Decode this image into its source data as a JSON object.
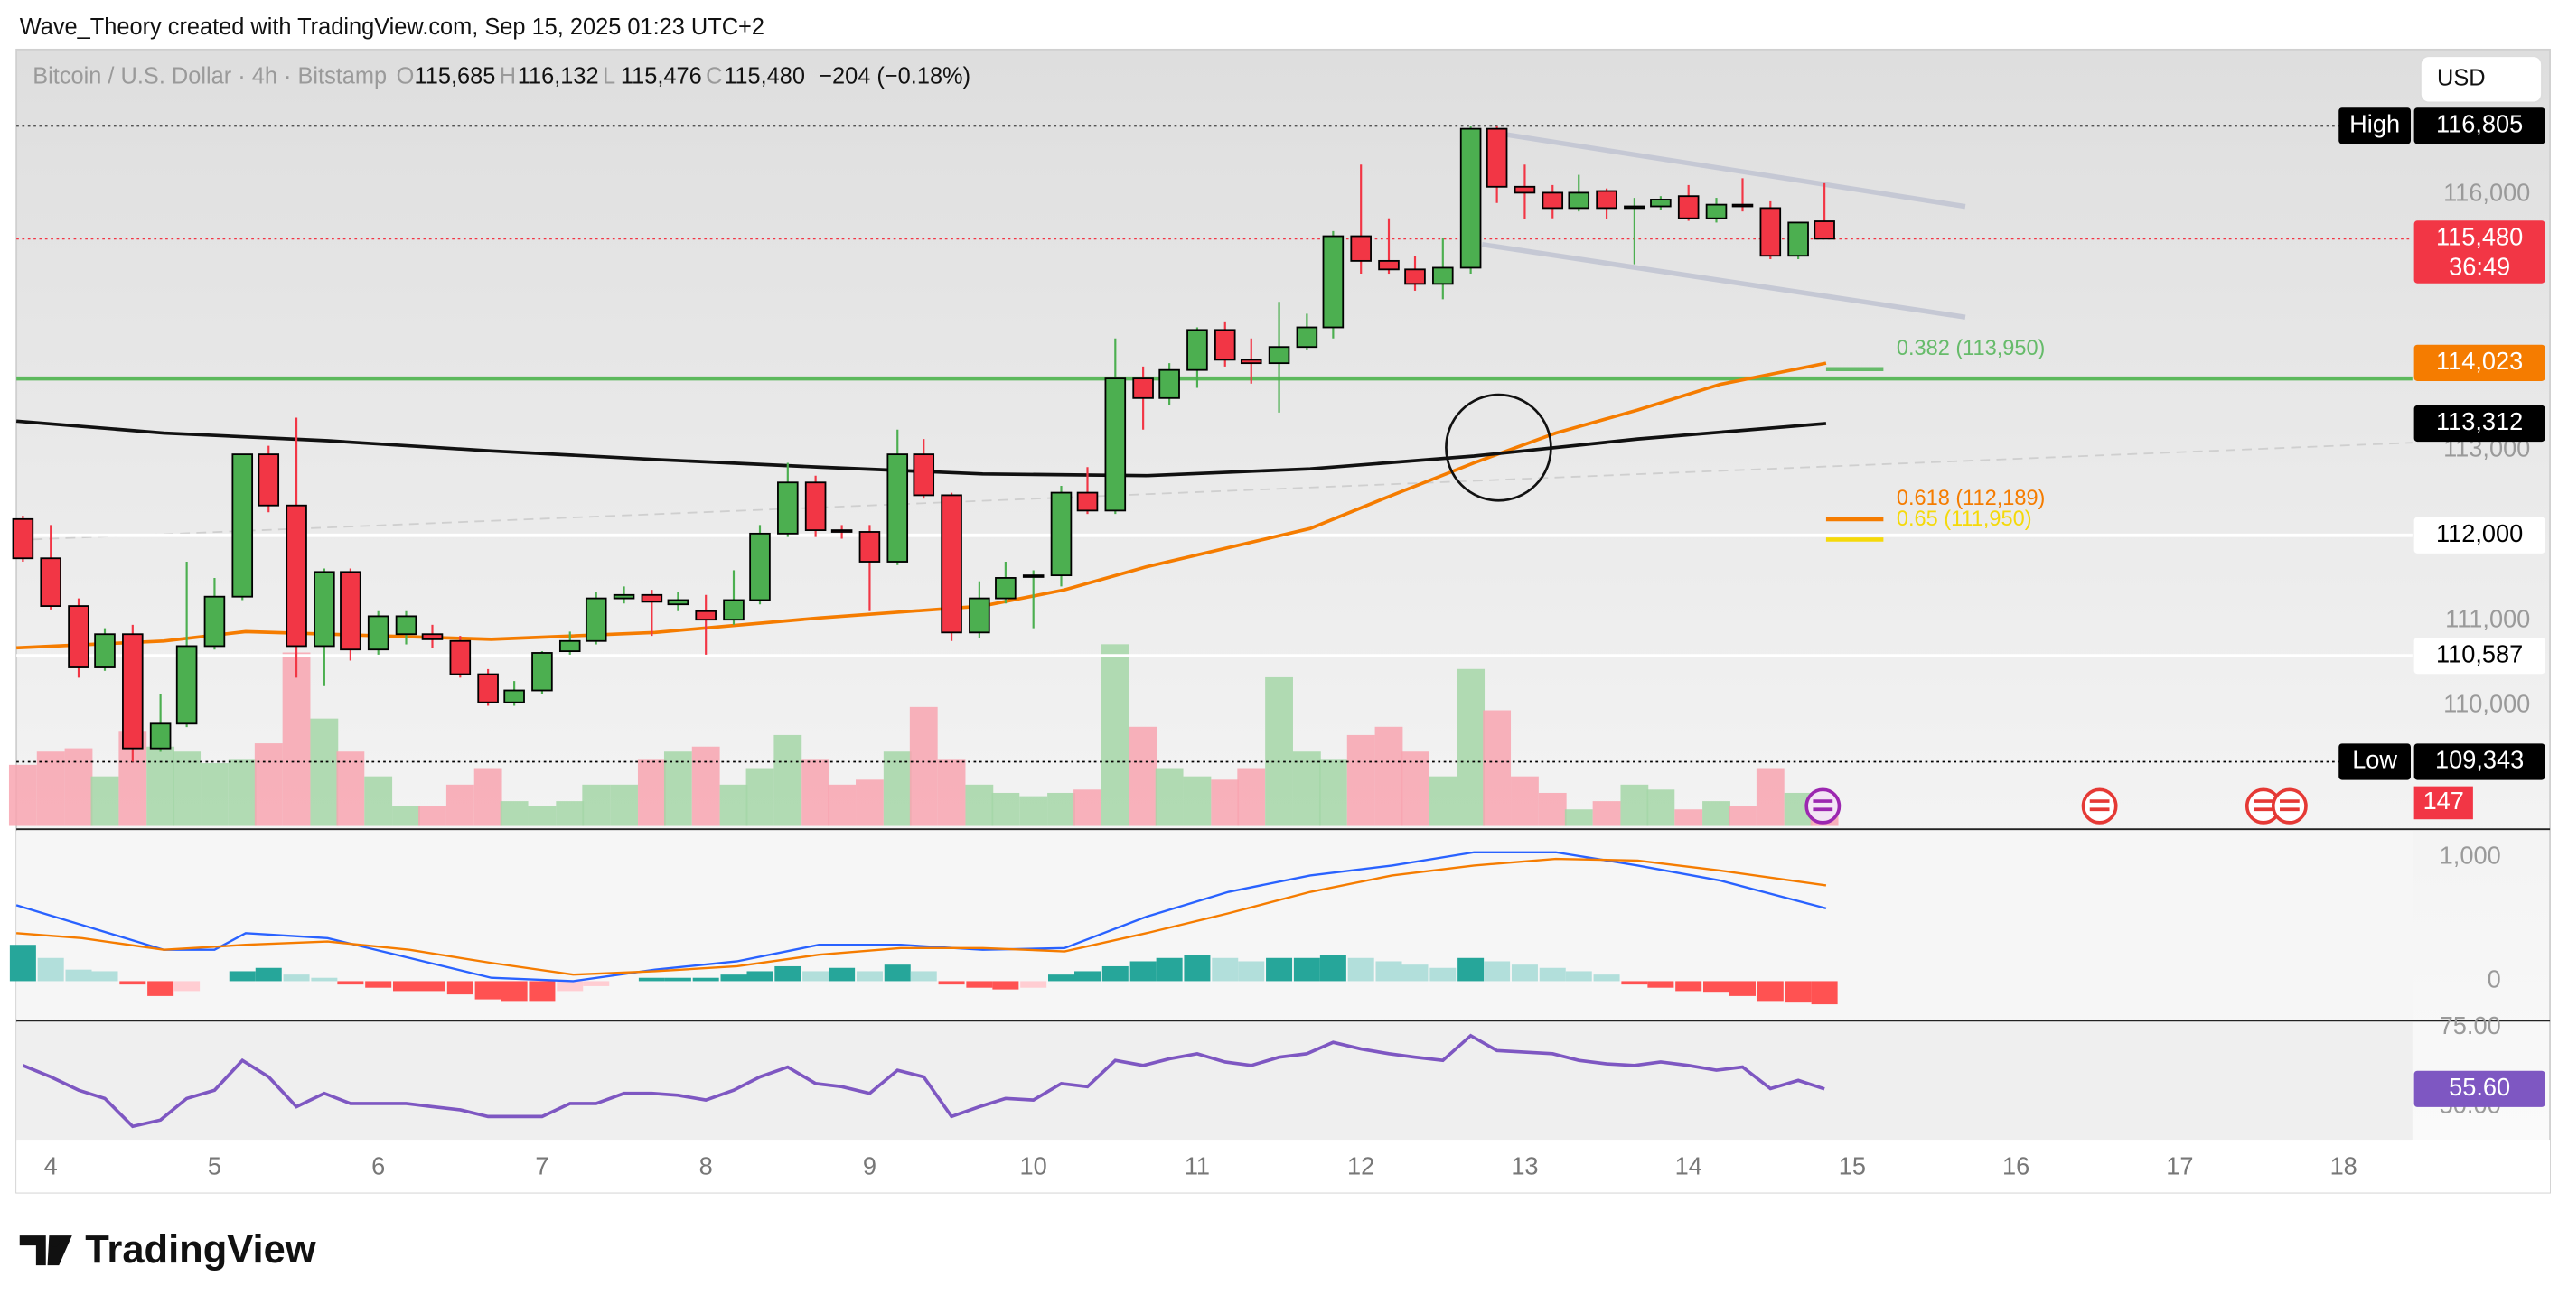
{
  "header": {
    "attribution": "Wave_Theory created with TradingView.com, Sep 15, 2025 01:23 UTC+2",
    "currency": "USD"
  },
  "logo": "TradingView",
  "chart_data": [
    {
      "type": "candlestick",
      "title": "Bitcoin / U.S. Dollar · 4h · Bitstamp",
      "legend_values": [
        {
          "key": "O",
          "value": 115685,
          "label": "115,685"
        },
        {
          "key": "H",
          "value": 116132,
          "label": "116,132"
        },
        {
          "key": "L",
          "value": 115476,
          "label": "115,476"
        },
        {
          "key": "C",
          "value": 115480,
          "label": "115,480"
        }
      ],
      "change": {
        "value": -204,
        "label": "−204 (−0.18%)"
      },
      "colors": {
        "up": "#4caf50",
        "down": "#f23645",
        "outline": "#000000",
        "volume_up": "#a5d6a7",
        "volume_down": "#f8a5b0"
      },
      "x": [
        3.83,
        4,
        4.17,
        4.33,
        4.5,
        4.67,
        4.83,
        5,
        5.17,
        5.33,
        5.5,
        5.67,
        5.83,
        6,
        6.17,
        6.33,
        6.5,
        6.67,
        6.83,
        7,
        7.17,
        7.33,
        7.5,
        7.67,
        7.83,
        8,
        8.17,
        8.33,
        8.5,
        8.67,
        8.83,
        9,
        9.17,
        9.33,
        9.5,
        9.67,
        9.83,
        10,
        10.17,
        10.33,
        10.5,
        10.67,
        10.83,
        11,
        11.17,
        11.33,
        11.5,
        11.67,
        11.83,
        12,
        12.17,
        12.33,
        12.5,
        12.67,
        12.83,
        13,
        13.17,
        13.33,
        13.5,
        13.67,
        13.83,
        14,
        14.17,
        14.33,
        14.5,
        14.67,
        14.83
      ],
      "open": [
        112190,
        111730,
        111170,
        110450,
        110840,
        109500,
        109790,
        110700,
        111280,
        112950,
        112350,
        110700,
        111570,
        110660,
        110840,
        110840,
        110760,
        110370,
        110040,
        110180,
        110640,
        110760,
        111260,
        111300,
        111190,
        111110,
        111010,
        111240,
        112020,
        112620,
        112060,
        112040,
        111690,
        112950,
        112470,
        110860,
        111260,
        111520,
        111530,
        112500,
        112290,
        113840,
        113610,
        113940,
        114410,
        114060,
        114020,
        114210,
        114440,
        115510,
        115220,
        115120,
        114950,
        115140,
        116770,
        116090,
        116020,
        115840,
        116040,
        115840,
        115860,
        115980,
        115720,
        115880,
        115840,
        115280,
        115685
      ],
      "high": [
        112230,
        112120,
        111260,
        110910,
        110950,
        110140,
        111690,
        111500,
        112950,
        113050,
        113380,
        111610,
        111610,
        111110,
        111110,
        110950,
        110820,
        110430,
        110290,
        110640,
        110870,
        111340,
        111400,
        111360,
        111340,
        111300,
        111590,
        112120,
        112850,
        112700,
        112120,
        112120,
        113240,
        113130,
        112500,
        111460,
        111690,
        111590,
        112580,
        112800,
        114310,
        113980,
        114020,
        114440,
        114500,
        114310,
        114740,
        114600,
        115570,
        116350,
        115720,
        115280,
        115490,
        116805,
        116800,
        116350,
        116110,
        116230,
        116070,
        115960,
        115980,
        116110,
        115960,
        116190,
        115920,
        115670,
        116132
      ],
      "low": [
        111690,
        111130,
        110330,
        110410,
        109343,
        109460,
        109750,
        110660,
        111240,
        112270,
        110330,
        110230,
        110530,
        110600,
        110720,
        110680,
        110330,
        110000,
        110000,
        110140,
        110600,
        110720,
        111200,
        110820,
        111110,
        110600,
        110950,
        111190,
        111980,
        111980,
        111960,
        111110,
        111650,
        112430,
        110760,
        110800,
        111200,
        110910,
        111400,
        112250,
        112250,
        113240,
        113530,
        113730,
        113980,
        113780,
        113440,
        114170,
        114310,
        115070,
        115070,
        114870,
        114770,
        115070,
        115900,
        115710,
        115720,
        115800,
        115710,
        115180,
        115820,
        115690,
        115670,
        115800,
        115240,
        115240,
        115476
      ],
      "close": [
        111730,
        111170,
        110450,
        110840,
        109500,
        109790,
        110700,
        111280,
        112950,
        112350,
        110700,
        111570,
        110660,
        111050,
        111050,
        110780,
        110370,
        110040,
        110180,
        110620,
        110760,
        111260,
        111300,
        111220,
        111240,
        111010,
        111240,
        112020,
        112620,
        112060,
        112040,
        111690,
        112950,
        112470,
        110860,
        111260,
        111500,
        111530,
        112500,
        112290,
        113840,
        113610,
        113940,
        114410,
        114060,
        114020,
        114210,
        114440,
        115510,
        115220,
        115120,
        114950,
        115140,
        116770,
        116090,
        116020,
        115840,
        116020,
        115840,
        115860,
        115940,
        115720,
        115880,
        115860,
        115280,
        115670,
        115480
      ],
      "volume": {
        "values": [
          666,
          810,
          846,
          540,
          1026,
          864,
          810,
          684,
          720,
          900,
          1890,
          1170,
          810,
          540,
          216,
          216,
          450,
          630,
          270,
          216,
          270,
          450,
          450,
          720,
          810,
          864,
          450,
          630,
          990,
          720,
          450,
          504,
          810,
          1296,
          720,
          450,
          360,
          324,
          360,
          396,
          1980,
          1080,
          630,
          540,
          504,
          630,
          1620,
          810,
          720,
          990,
          1080,
          810,
          540,
          1710,
          1260,
          540,
          360,
          180,
          270,
          450,
          396,
          180,
          270,
          216,
          630,
          360,
          147
        ],
        "label_color": "#f23645"
      },
      "overlays": [
        {
          "color": "#f57c00",
          "x": [
            3.79,
            4.69,
            5.19,
            5.69,
            6.69,
            7.69,
            8.69,
            9.69,
            10.19,
            10.69,
            11.69,
            12.19,
            12.69,
            13.19,
            13.69,
            14.19,
            14.84
          ],
          "values": [
            110680,
            110760,
            110870,
            110840,
            110780,
            110860,
            111030,
            111170,
            111360,
            111630,
            112080,
            112470,
            112850,
            113200,
            113470,
            113770,
            114020
          ]
        },
        {
          "color": "#111111",
          "x": [
            3.79,
            4.69,
            5.69,
            6.69,
            7.69,
            8.69,
            9.69,
            10.69,
            11.69,
            12.69,
            13.69,
            14.84
          ],
          "values": [
            113340,
            113200,
            113110,
            112990,
            112890,
            112800,
            112720,
            112700,
            112780,
            112930,
            113130,
            113312
          ]
        }
      ],
      "hlines": [
        {
          "value": 113840,
          "color": "#5cb85c"
        }
      ],
      "fib_levels": [
        {
          "label": "0.382 (113,950)",
          "value": 113950,
          "color": "#66bb6a"
        },
        {
          "label": "0.618 (112,189)",
          "value": 112189,
          "color": "#f57c00"
        },
        {
          "label": "0.65 (111,950)",
          "value": 111950,
          "color": "#f5d90a"
        }
      ],
      "price_labels": [
        {
          "tag": "High",
          "value": 116805,
          "label": "116,805",
          "color": "#000000",
          "text_color": "#ffffff",
          "line": "dotted"
        },
        {
          "value": 115480,
          "label": "115,480",
          "sub": "36:49",
          "color": "#f23645",
          "text_color": "#ffffff",
          "line": "dotted"
        },
        {
          "value": 114023,
          "label": "114,023",
          "color": "#f57c00",
          "text_color": "#ffffff"
        },
        {
          "value": 113312,
          "label": "113,312",
          "color": "#000000",
          "text_color": "#ffffff"
        },
        {
          "value": 112000,
          "label": "112,000",
          "color": "#ffffff",
          "text_color": "#000000",
          "line": "solid"
        },
        {
          "value": 110587,
          "label": "110,587",
          "color": "#ffffff",
          "text_color": "#000000",
          "line": "solid"
        },
        {
          "tag": "Low",
          "value": 109343,
          "label": "109,343",
          "color": "#000000",
          "text_color": "#ffffff",
          "line": "dotted"
        }
      ],
      "xlim": [
        3.79,
        18.42
      ],
      "xticks": [
        4,
        5,
        6,
        7,
        8,
        9,
        10,
        11,
        12,
        13,
        14,
        15,
        16,
        17,
        18
      ],
      "ylim": [
        108590,
        117700
      ],
      "yticks": [
        {
          "value": 110000,
          "label": "110,000"
        },
        {
          "value": 111000,
          "label": "111,000"
        },
        {
          "value": 112000,
          "label": "112,000"
        },
        {
          "value": 113000,
          "label": "113,000"
        },
        {
          "value": 116000,
          "label": "116,000"
        }
      ],
      "grid": false
    },
    {
      "type": "macd",
      "series": [
        {
          "color": "#2962ff",
          "x": [
            3.79,
            4.19,
            4.69,
            5.0,
            5.19,
            5.69,
            6.19,
            6.69,
            7.19,
            7.69,
            8.19,
            8.69,
            9.19,
            9.69,
            10.19,
            10.69,
            11.19,
            11.69,
            12.19,
            12.69,
            13.19,
            13.69,
            14.19,
            14.84
          ],
          "values": [
            613,
            453,
            253,
            253,
            387,
            347,
            187,
            27,
            0,
            93,
            160,
            293,
            293,
            253,
            267,
            520,
            720,
            853,
            933,
            1040,
            1040,
            933,
            813,
            587
          ]
        },
        {
          "color": "#f57c00",
          "x": [
            3.79,
            4.19,
            4.69,
            5.19,
            5.69,
            6.19,
            6.69,
            7.19,
            7.69,
            8.19,
            8.69,
            9.19,
            9.69,
            10.19,
            10.69,
            11.19,
            11.69,
            12.19,
            12.69,
            13.19,
            13.69,
            14.19,
            14.84
          ],
          "values": [
            387,
            347,
            253,
            293,
            320,
            253,
            147,
            53,
            80,
            120,
            213,
            267,
            267,
            240,
            387,
            547,
            720,
            853,
            933,
            987,
            973,
            893,
            773
          ]
        }
      ],
      "histogram": [
        293,
        187,
        93,
        80,
        -27,
        -120,
        -80,
        0,
        80,
        107,
        53,
        27,
        -27,
        -53,
        -80,
        -80,
        -107,
        -147,
        -160,
        -160,
        -80,
        -40,
        0,
        27,
        27,
        27,
        53,
        80,
        120,
        80,
        107,
        80,
        133,
        80,
        -27,
        -53,
        -67,
        -53,
        53,
        80,
        120,
        160,
        187,
        213,
        187,
        160,
        187,
        187,
        213,
        187,
        160,
        133,
        107,
        187,
        160,
        133,
        107,
        80,
        53,
        -27,
        -53,
        -80,
        -93,
        -120,
        -160,
        -173,
        -187
      ],
      "histogram_colors": {
        "pos_rising": "#26a69a",
        "pos_falling": "#b2dfdb",
        "neg_falling": "#ff5252",
        "neg_rising": "#ffcdd2"
      },
      "ylim": [
        -307,
        1213
      ],
      "yticks": [
        0,
        {
          "value": 1000,
          "label": "1,000"
        }
      ]
    },
    {
      "type": "line",
      "color": "#7e57c2",
      "values": [
        63,
        59.4,
        55.2,
        52.6,
        43.8,
        45.8,
        52.6,
        55.2,
        64.6,
        59.4,
        50,
        54.2,
        51,
        51,
        51,
        50,
        49,
        46.9,
        46.9,
        46.9,
        51,
        51,
        54.2,
        54.2,
        53.6,
        52.1,
        55.2,
        59.4,
        62.5,
        57.3,
        56.3,
        54.2,
        61.5,
        59.4,
        46.9,
        50,
        52.6,
        52.1,
        57.3,
        56.3,
        64.6,
        63,
        65.1,
        66.7,
        64.1,
        63,
        65.6,
        66.7,
        70.3,
        68.2,
        66.7,
        65.6,
        64.6,
        72.4,
        67.7,
        67.2,
        66.7,
        64.6,
        63.5,
        63,
        64.1,
        63,
        61.5,
        62.5,
        55.7,
        58.3,
        55.6
      ],
      "current": {
        "value": 55.6,
        "label": "55.60"
      },
      "ylim": [
        39.58,
        76.56
      ],
      "yticks": [
        {
          "value": 75,
          "label": "75.00"
        },
        {
          "value": 50,
          "label": "50.00"
        }
      ]
    }
  ]
}
